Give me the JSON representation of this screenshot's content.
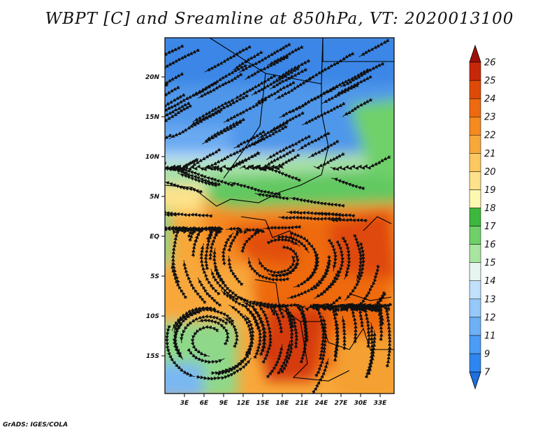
{
  "title": "WBPT [C] and Sreamline at 850hPa, VT: 2020013100",
  "footer": "GrADS: IGES/COLA",
  "map": {
    "lon_labels": [
      "3E",
      "6E",
      "9E",
      "12E",
      "15E",
      "18E",
      "21E",
      "24E",
      "27E",
      "30E",
      "33E"
    ],
    "lat_labels": [
      "20N",
      "15N",
      "10N",
      "5N",
      "EQ",
      "5S",
      "10S",
      "15S"
    ],
    "lon_range": [
      0,
      35
    ],
    "lat_range": [
      -19,
      24
    ]
  },
  "colorbar": {
    "labels": [
      "7",
      "9",
      "11",
      "12",
      "13",
      "14",
      "15",
      "16",
      "17",
      "18",
      "19",
      "20",
      "21",
      "22",
      "23",
      "24",
      "25",
      "26"
    ],
    "colors": [
      "#1e6fe0",
      "#2e86f0",
      "#4a9cf5",
      "#6eb0f5",
      "#96c8fa",
      "#c0e0fc",
      "#e6f5f0",
      "#a8e6a0",
      "#6fd06a",
      "#3cb83c",
      "#fdf8b0",
      "#fde28a",
      "#fcc860",
      "#f8a83a",
      "#f48a20",
      "#ee6a10",
      "#e04a08",
      "#c82808",
      "#a01008"
    ]
  }
}
